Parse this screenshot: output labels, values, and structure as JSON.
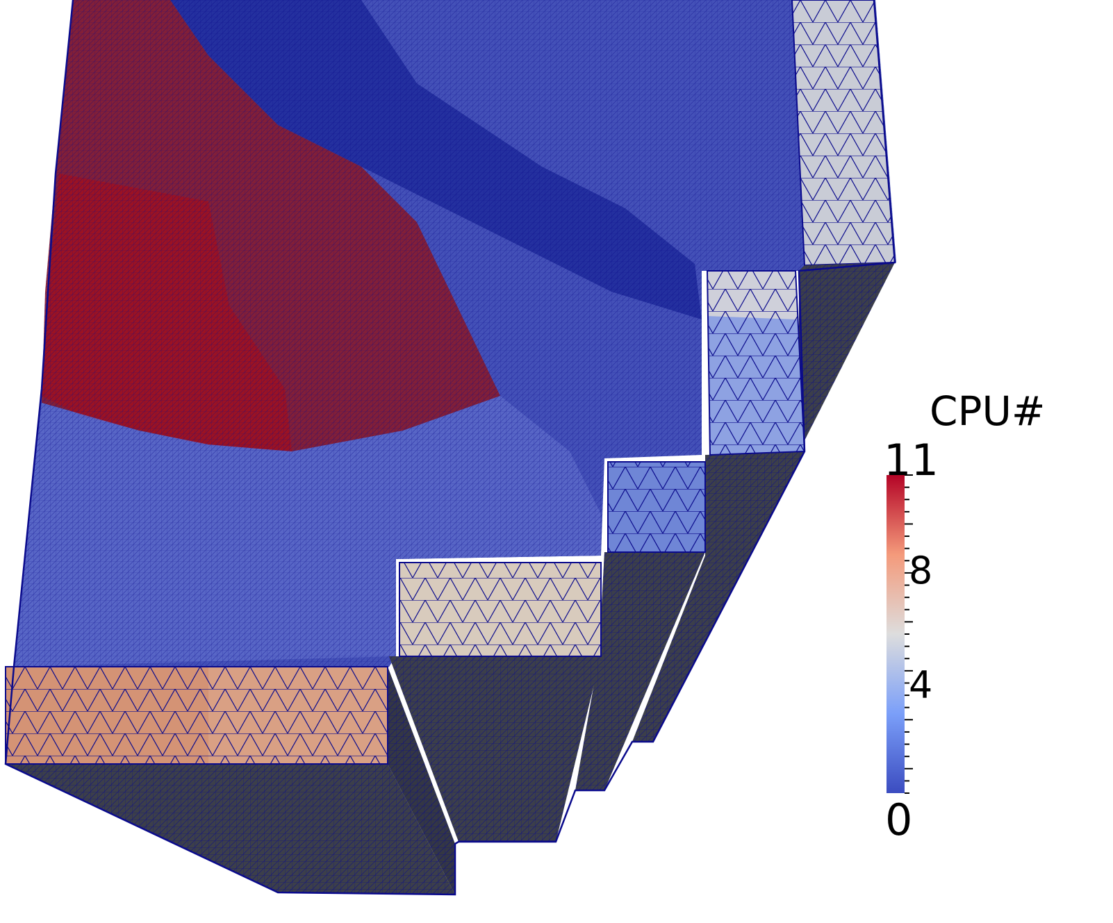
{
  "legend": {
    "title": "CPU#",
    "max_label": "11",
    "min_label": "0",
    "tick_labels": [
      "8",
      "4"
    ],
    "range": [
      0,
      11
    ],
    "colors": {
      "low": "#3b4cc0",
      "mid": "#dddddd",
      "high": "#b40426"
    }
  },
  "mesh": {
    "edge_color": "#0a0a8c",
    "side_face_color": "#3c3f4a",
    "regions": [
      {
        "name": "upper-left-domain",
        "cpu": 11
      },
      {
        "name": "central-domain",
        "cpu": 1
      },
      {
        "name": "top-domain",
        "cpu": 0
      },
      {
        "name": "right-column",
        "cpu": 5
      },
      {
        "name": "step-1",
        "cpu": 9
      },
      {
        "name": "step-2",
        "cpu": 7
      },
      {
        "name": "step-3",
        "cpu": 2
      },
      {
        "name": "step-4",
        "cpu": 3
      },
      {
        "name": "step-5",
        "cpu": 6
      }
    ]
  }
}
